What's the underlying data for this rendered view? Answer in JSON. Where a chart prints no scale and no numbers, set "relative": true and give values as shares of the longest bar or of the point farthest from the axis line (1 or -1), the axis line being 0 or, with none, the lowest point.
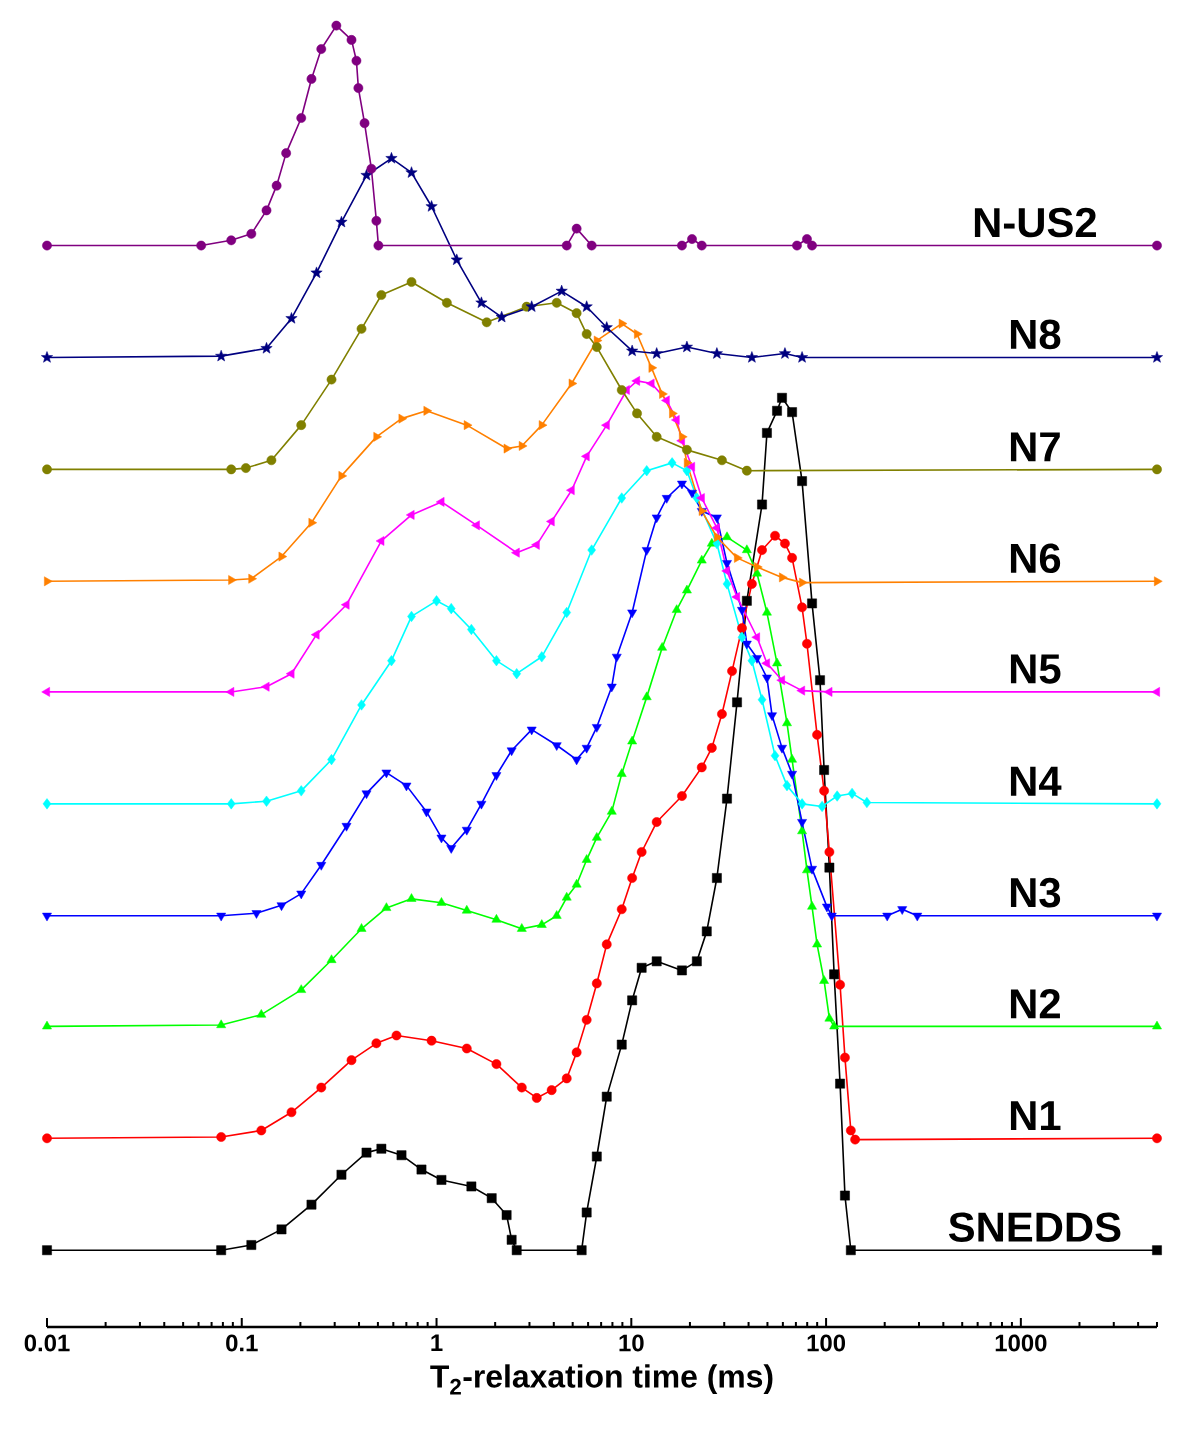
{
  "chart_data": {
    "type": "line",
    "relative": true,
    "xlabel": "T$_{2}$-relaxation time (ms)",
    "log": "x",
    "xlim": [
      0.01,
      5000
    ],
    "xticks": [
      0.01,
      0.1,
      1,
      10,
      100,
      1000
    ],
    "grid": false,
    "series": [
      {
        "name": "SNEDDS",
        "color": "#000000",
        "marker": "square",
        "x": [
          0.01,
          0.0784,
          0.112,
          0.16,
          0.228,
          0.325,
          0.437,
          0.521,
          0.661,
          0.837,
          1.06,
          1.51,
          1.92,
          2.29,
          2.43,
          2.58,
          5.56,
          5.9,
          6.65,
          7.48,
          8.93,
          10.1,
          11.3,
          13.5,
          18.2,
          21.7,
          24.4,
          27.5,
          31.0,
          34.9,
          39.2,
          46.9,
          49.7,
          56.0,
          59.4,
          66.9,
          75.3,
          84.7,
          93.1,
          97.7,
          104,
          110,
          118,
          125,
          134,
          5000
        ],
        "values": [
          0.059,
          0.059,
          0.063,
          0.075,
          0.094,
          0.117,
          0.134,
          0.137,
          0.132,
          0.121,
          0.113,
          0.108,
          0.099,
          0.086,
          0.067,
          0.059,
          0.059,
          0.088,
          0.131,
          0.177,
          0.217,
          0.251,
          0.276,
          0.281,
          0.274,
          0.281,
          0.304,
          0.345,
          0.406,
          0.48,
          0.558,
          0.632,
          0.687,
          0.704,
          0.714,
          0.703,
          0.65,
          0.556,
          0.497,
          0.428,
          0.353,
          0.271,
          0.187,
          0.101,
          0.059,
          0.059
        ]
      },
      {
        "name": "N1",
        "color": "#ff0000",
        "marker": "circle",
        "x": [
          0.01,
          0.0784,
          0.126,
          0.18,
          0.256,
          0.366,
          0.491,
          0.623,
          0.943,
          1.43,
          2.03,
          2.74,
          3.27,
          3.9,
          4.66,
          5.24,
          5.9,
          6.65,
          7.48,
          8.93,
          10.1,
          11.3,
          13.5,
          18.2,
          23.0,
          25.9,
          29.2,
          32.9,
          37.0,
          41.6,
          46.9,
          54.7,
          61.5,
          66.9,
          75.3,
          79.8,
          89.9,
          97.7,
          104,
          118,
          125,
          134,
          141,
          5000
        ],
        "values": [
          0.145,
          0.146,
          0.151,
          0.165,
          0.184,
          0.205,
          0.218,
          0.224,
          0.22,
          0.214,
          0.202,
          0.184,
          0.176,
          0.182,
          0.191,
          0.211,
          0.236,
          0.264,
          0.294,
          0.321,
          0.345,
          0.365,
          0.388,
          0.408,
          0.43,
          0.445,
          0.471,
          0.504,
          0.537,
          0.571,
          0.597,
          0.608,
          0.602,
          0.591,
          0.553,
          0.525,
          0.455,
          0.412,
          0.365,
          0.263,
          0.207,
          0.151,
          0.144,
          0.145
        ]
      },
      {
        "name": "N2",
        "color": "#00ff00",
        "marker": "triangle",
        "x": [
          0.01,
          0.0784,
          0.126,
          0.202,
          0.289,
          0.412,
          0.553,
          0.744,
          1.06,
          1.43,
          2.03,
          2.74,
          3.47,
          4.14,
          4.66,
          5.24,
          5.9,
          6.65,
          7.94,
          8.93,
          10.1,
          12.0,
          14.4,
          17.1,
          19.3,
          23.0,
          25.9,
          31.0,
          39.2,
          44.2,
          49.7,
          56.0,
          63.0,
          66.9,
          75.3,
          79.8,
          84.7,
          89.9,
          97.7,
          104,
          110,
          5000
        ],
        "values": [
          0.231,
          0.232,
          0.24,
          0.259,
          0.282,
          0.306,
          0.322,
          0.329,
          0.326,
          0.32,
          0.313,
          0.306,
          0.309,
          0.316,
          0.33,
          0.34,
          0.359,
          0.376,
          0.396,
          0.425,
          0.45,
          0.484,
          0.522,
          0.551,
          0.566,
          0.589,
          0.602,
          0.607,
          0.597,
          0.579,
          0.549,
          0.51,
          0.464,
          0.436,
          0.381,
          0.351,
          0.323,
          0.294,
          0.266,
          0.237,
          0.231,
          0.231
        ]
      },
      {
        "name": "N3",
        "color": "#0000ff",
        "marker": "triangle-down",
        "x": [
          0.01,
          0.0784,
          0.119,
          0.16,
          0.202,
          0.256,
          0.345,
          0.437,
          0.553,
          0.701,
          0.888,
          1.06,
          1.19,
          1.43,
          1.7,
          2.03,
          2.43,
          3.08,
          4.14,
          5.24,
          5.9,
          6.65,
          7.94,
          8.42,
          10.1,
          12.0,
          13.5,
          15.2,
          18.2,
          20.5,
          23.0,
          27.5,
          31.0,
          37.0,
          39.2,
          44.2,
          49.7,
          52.8,
          59.4,
          66.9,
          75.3,
          84.7,
          101,
          107,
          206,
          246,
          294,
          5000
        ],
        "values": [
          0.316,
          0.316,
          0.318,
          0.324,
          0.333,
          0.355,
          0.385,
          0.41,
          0.426,
          0.416,
          0.396,
          0.376,
          0.368,
          0.382,
          0.402,
          0.424,
          0.443,
          0.459,
          0.447,
          0.436,
          0.445,
          0.461,
          0.492,
          0.515,
          0.549,
          0.597,
          0.622,
          0.637,
          0.648,
          0.641,
          0.627,
          0.622,
          0.587,
          0.551,
          0.525,
          0.514,
          0.499,
          0.47,
          0.445,
          0.425,
          0.388,
          0.352,
          0.323,
          0.316,
          0.316,
          0.321,
          0.316,
          0.316
        ]
      },
      {
        "name": "N4",
        "color": "#00ffff",
        "marker": "diamond",
        "x": [
          0.01,
          0.0883,
          0.134,
          0.202,
          0.289,
          0.412,
          0.587,
          0.744,
          1,
          1.19,
          1.51,
          2.03,
          2.58,
          3.47,
          4.66,
          6.26,
          8.93,
          12.0,
          16.2,
          19.3,
          21.7,
          27.5,
          31.0,
          37.0,
          41.6,
          46.9,
          54.7,
          63.0,
          75.3,
          95.4,
          114,
          136,
          162,
          5000
        ],
        "values": [
          0.402,
          0.402,
          0.404,
          0.412,
          0.436,
          0.478,
          0.512,
          0.546,
          0.558,
          0.552,
          0.536,
          0.512,
          0.502,
          0.515,
          0.549,
          0.597,
          0.637,
          0.658,
          0.664,
          0.658,
          0.637,
          0.602,
          0.571,
          0.53,
          0.512,
          0.482,
          0.439,
          0.416,
          0.402,
          0.4,
          0.408,
          0.41,
          0.403,
          0.402
        ]
      },
      {
        "name": "N5",
        "color": "#ff00ff",
        "marker": "triangle-left",
        "x": [
          0.01,
          0.0883,
          0.134,
          0.18,
          0.242,
          0.345,
          0.521,
          0.744,
          1.06,
          1.61,
          2.58,
          3.27,
          3.9,
          4.94,
          5.9,
          7.48,
          9.48,
          10.7,
          12.7,
          15.2,
          17.1,
          18.2,
          20.5,
          23.0,
          27.5,
          31.0,
          34.9,
          44.2,
          49.7,
          59.4,
          75.3,
          104,
          5000
        ],
        "values": [
          0.488,
          0.488,
          0.492,
          0.502,
          0.532,
          0.555,
          0.604,
          0.624,
          0.634,
          0.616,
          0.595,
          0.601,
          0.619,
          0.643,
          0.669,
          0.693,
          0.72,
          0.727,
          0.725,
          0.712,
          0.697,
          0.681,
          0.661,
          0.637,
          0.614,
          0.581,
          0.561,
          0.53,
          0.51,
          0.497,
          0.489,
          0.488,
          0.488
        ]
      },
      {
        "name": "N6",
        "color": "#ff8000",
        "marker": "triangle-right",
        "x": [
          0.01,
          0.0883,
          0.112,
          0.16,
          0.228,
          0.325,
          0.491,
          0.661,
          0.888,
          1.43,
          2.29,
          2.74,
          3.47,
          4.94,
          6.65,
          8.93,
          10.7,
          12.7,
          14.4,
          16.2,
          18.2,
          19.3,
          23.0,
          27.5,
          34.9,
          44.2,
          59.4,
          75.3,
          5000
        ],
        "values": [
          0.573,
          0.574,
          0.575,
          0.592,
          0.618,
          0.654,
          0.684,
          0.698,
          0.704,
          0.693,
          0.675,
          0.677,
          0.693,
          0.725,
          0.758,
          0.771,
          0.763,
          0.737,
          0.717,
          0.702,
          0.684,
          0.664,
          0.627,
          0.607,
          0.591,
          0.584,
          0.576,
          0.572,
          0.573
        ]
      },
      {
        "name": "N7",
        "color": "#808000",
        "marker": "circle",
        "x": [
          0.01,
          0.0883,
          0.105,
          0.142,
          0.202,
          0.289,
          0.412,
          0.521,
          0.744,
          1.13,
          1.81,
          2.9,
          4.14,
          5.24,
          5.9,
          6.65,
          8.93,
          10.7,
          13.5,
          19.3,
          29.2,
          39.2,
          5000
        ],
        "values": [
          0.659,
          0.659,
          0.66,
          0.666,
          0.693,
          0.728,
          0.767,
          0.793,
          0.803,
          0.787,
          0.772,
          0.784,
          0.787,
          0.779,
          0.763,
          0.753,
          0.72,
          0.702,
          0.684,
          0.674,
          0.666,
          0.658,
          0.659
        ]
      },
      {
        "name": "N8",
        "color": "#000080",
        "marker": "star",
        "x": [
          0.01,
          0.0784,
          0.134,
          0.18,
          0.242,
          0.325,
          0.437,
          0.587,
          0.744,
          0.943,
          1.27,
          1.7,
          2.16,
          3.08,
          4.39,
          5.9,
          7.48,
          10.1,
          13.5,
          19.3,
          27.5,
          41.6,
          61.5,
          75.3,
          5000
        ],
        "values": [
          0.745,
          0.746,
          0.752,
          0.775,
          0.81,
          0.849,
          0.885,
          0.898,
          0.887,
          0.861,
          0.82,
          0.787,
          0.776,
          0.784,
          0.796,
          0.784,
          0.768,
          0.75,
          0.748,
          0.753,
          0.748,
          0.745,
          0.748,
          0.745,
          0.745
        ]
      },
      {
        "name": "N-US2",
        "color": "#800080",
        "marker": "circle",
        "x": [
          0.01,
          0.0619,
          0.0883,
          0.112,
          0.134,
          0.151,
          0.169,
          0.202,
          0.228,
          0.256,
          0.306,
          0.366,
          0.388,
          0.397,
          0.427,
          0.463,
          0.491,
          0.503,
          4.66,
          5.24,
          6.26,
          18.2,
          20.5,
          23.0,
          70.9,
          79.8,
          84.7,
          5000
        ],
        "values": [
          0.831,
          0.831,
          0.835,
          0.84,
          0.858,
          0.877,
          0.902,
          0.929,
          0.959,
          0.982,
          1,
          0.989,
          0.973,
          0.952,
          0.925,
          0.89,
          0.85,
          0.831,
          0.831,
          0.844,
          0.831,
          0.831,
          0.836,
          0.831,
          0.831,
          0.836,
          0.831,
          0.831
        ]
      }
    ]
  }
}
